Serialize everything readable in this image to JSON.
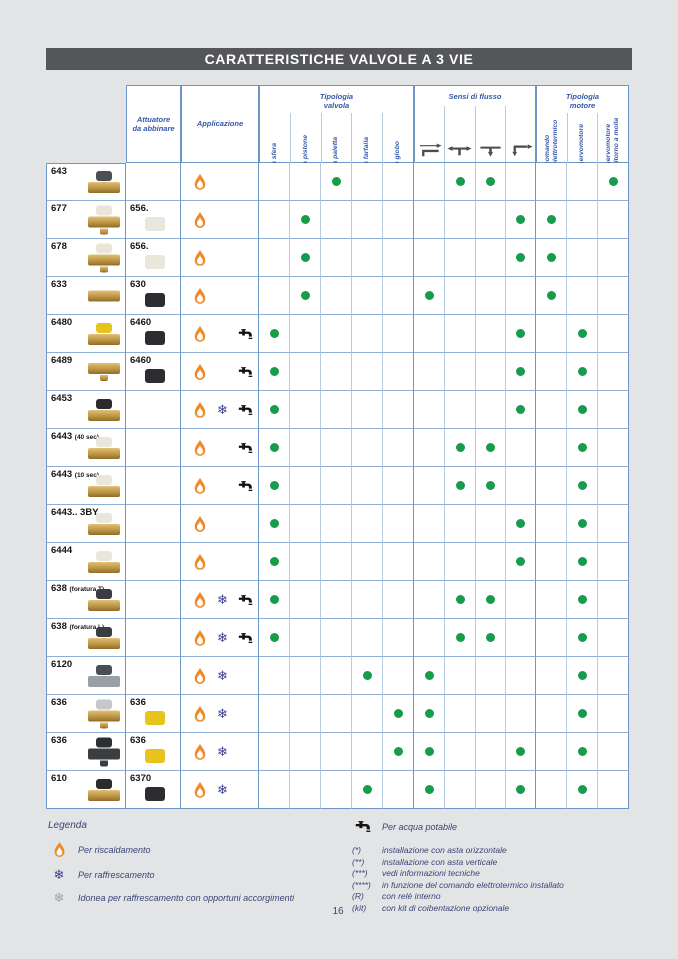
{
  "page": {
    "title": "CARATTERISTICHE VALVOLE A 3 VIE",
    "page_number": "16"
  },
  "colors": {
    "accent_green": "#169c4b",
    "flame_orange": "#ee8a2a",
    "snow_blue": "#3b3f94",
    "snow_gray": "#9fa1a5",
    "header_blue": "#3558a8",
    "brass": "brass"
  },
  "table": {
    "headers": {
      "attuatore": "Attuatore\nda abbinare",
      "applicazione": "Applicazione",
      "tipologia_valvola": "Tipologia\nvalvola",
      "valve_types": [
        "a sfera",
        "a pistone",
        "a paletta",
        "a farfalla",
        "a globo"
      ],
      "sensi_di_flusso": "Sensi di flusso",
      "flow_icons": [
        "flow-elbow-right-icon",
        "flow-tee-sides-icon",
        "flow-tee-down-icon",
        "flow-elbow-down-icon"
      ],
      "tipologia_motore": "Tipologia\nmotore",
      "motor_types": [
        "comando elettrotermico",
        "servomotore",
        "servomotore ritorno a molla"
      ]
    },
    "rows": [
      {
        "code": "643",
        "suffix": "",
        "actuator_code": "",
        "apps": [
          "heating"
        ],
        "valve": [
          0,
          0,
          1,
          0,
          0
        ],
        "flow": [
          0,
          1,
          1,
          0
        ],
        "motor": [
          0,
          0,
          1
        ],
        "product": {
          "top": "#4b4e54",
          "body": "brass",
          "bottom": false
        },
        "actuator": null
      },
      {
        "code": "677",
        "suffix": "",
        "actuator_code": "656.",
        "apps": [
          "heating"
        ],
        "valve": [
          0,
          1,
          0,
          0,
          0
        ],
        "flow": [
          0,
          0,
          0,
          1
        ],
        "motor": [
          1,
          0,
          0
        ],
        "product": {
          "top": "#e9e7dc",
          "body": "brass",
          "bottom": true
        },
        "actuator": "#e9e7dc"
      },
      {
        "code": "678",
        "suffix": "",
        "actuator_code": "656.",
        "apps": [
          "heating"
        ],
        "valve": [
          0,
          1,
          0,
          0,
          0
        ],
        "flow": [
          0,
          0,
          0,
          1
        ],
        "motor": [
          1,
          0,
          0
        ],
        "product": {
          "top": "#e9e7dc",
          "body": "brass",
          "bottom": true
        },
        "actuator": "#e9e7dc"
      },
      {
        "code": "633",
        "suffix": "",
        "actuator_code": "630",
        "apps": [
          "heating"
        ],
        "valve": [
          0,
          1,
          0,
          0,
          0
        ],
        "flow": [
          1,
          0,
          0,
          0
        ],
        "motor": [
          1,
          0,
          0
        ],
        "product": {
          "top": null,
          "body": "brass",
          "bottom": false
        },
        "actuator": "#2b2d30"
      },
      {
        "code": "6480",
        "suffix": "",
        "actuator_code": "6460",
        "apps": [
          "heating",
          "potable"
        ],
        "valve": [
          1,
          0,
          0,
          0,
          0
        ],
        "flow": [
          0,
          0,
          0,
          1
        ],
        "motor": [
          0,
          1,
          0
        ],
        "product": {
          "top": "#e6c31d",
          "body": "brass",
          "bottom": false
        },
        "actuator": "#2b2d30"
      },
      {
        "code": "6489",
        "suffix": "",
        "actuator_code": "6460",
        "apps": [
          "heating",
          "potable"
        ],
        "valve": [
          1,
          0,
          0,
          0,
          0
        ],
        "flow": [
          0,
          0,
          0,
          1
        ],
        "motor": [
          0,
          1,
          0
        ],
        "product": {
          "top": null,
          "body": "brass",
          "bottom": true
        },
        "actuator": "#2b2d30"
      },
      {
        "code": "6453",
        "suffix": "",
        "actuator_code": "",
        "apps": [
          "heating",
          "cooling",
          "potable"
        ],
        "valve": [
          1,
          0,
          0,
          0,
          0
        ],
        "flow": [
          0,
          0,
          0,
          1
        ],
        "motor": [
          0,
          1,
          0
        ],
        "product": {
          "top": "#2b2b2e",
          "body": "brass",
          "bottom": false
        },
        "actuator": null
      },
      {
        "code": "6443",
        "suffix": "(40 sec)",
        "actuator_code": "",
        "apps": [
          "heating",
          "potable"
        ],
        "valve": [
          1,
          0,
          0,
          0,
          0
        ],
        "flow": [
          0,
          1,
          1,
          0
        ],
        "motor": [
          0,
          1,
          0
        ],
        "product": {
          "top": "#e9e7dc",
          "body": "brass",
          "bottom": false
        },
        "actuator": null
      },
      {
        "code": "6443",
        "suffix": "(10 sec)",
        "actuator_code": "",
        "apps": [
          "heating",
          "potable"
        ],
        "valve": [
          1,
          0,
          0,
          0,
          0
        ],
        "flow": [
          0,
          1,
          1,
          0
        ],
        "motor": [
          0,
          1,
          0
        ],
        "product": {
          "top": "#e9e7dc",
          "body": "brass",
          "bottom": false
        },
        "actuator": null
      },
      {
        "code": "6443.. 3BY",
        "suffix": "",
        "actuator_code": "",
        "apps": [
          "heating"
        ],
        "valve": [
          1,
          0,
          0,
          0,
          0
        ],
        "flow": [
          0,
          0,
          0,
          1
        ],
        "motor": [
          0,
          1,
          0
        ],
        "product": {
          "top": "#e9e7dc",
          "body": "brass",
          "bottom": false
        },
        "actuator": null
      },
      {
        "code": "6444",
        "suffix": "",
        "actuator_code": "",
        "apps": [
          "heating"
        ],
        "valve": [
          1,
          0,
          0,
          0,
          0
        ],
        "flow": [
          0,
          0,
          0,
          1
        ],
        "motor": [
          0,
          1,
          0
        ],
        "product": {
          "top": "#e9e7dc",
          "body": "brass",
          "bottom": false
        },
        "actuator": null
      },
      {
        "code": "638",
        "suffix": "(foratura T)",
        "actuator_code": "",
        "apps": [
          "heating",
          "cooling",
          "potable"
        ],
        "valve": [
          1,
          0,
          0,
          0,
          0
        ],
        "flow": [
          0,
          1,
          1,
          0
        ],
        "motor": [
          0,
          1,
          0
        ],
        "product": {
          "top": "#3a3c40",
          "body": "brass",
          "bottom": false
        },
        "actuator": null
      },
      {
        "code": "638",
        "suffix": "(foratura L)",
        "actuator_code": "",
        "apps": [
          "heating",
          "cooling",
          "potable"
        ],
        "valve": [
          1,
          0,
          0,
          0,
          0
        ],
        "flow": [
          0,
          1,
          1,
          0
        ],
        "motor": [
          0,
          1,
          0
        ],
        "product": {
          "top": "#3a3c40",
          "body": "brass",
          "bottom": false
        },
        "actuator": null
      },
      {
        "code": "6120",
        "suffix": "",
        "actuator_code": "",
        "apps": [
          "heating",
          "cooling"
        ],
        "valve": [
          0,
          0,
          0,
          1,
          0
        ],
        "flow": [
          1,
          0,
          0,
          0
        ],
        "motor": [
          0,
          1,
          0
        ],
        "product": {
          "top": "#4b4e54",
          "body": "#9aa0a6",
          "bottom": false
        },
        "actuator": null
      },
      {
        "code": "636",
        "suffix": "",
        "actuator_code": "636",
        "apps": [
          "heating",
          "cooling"
        ],
        "valve": [
          0,
          0,
          0,
          0,
          1
        ],
        "flow": [
          1,
          0,
          0,
          0
        ],
        "motor": [
          0,
          1,
          0
        ],
        "product": {
          "top": "#c6c8cc",
          "body": "brass",
          "bottom": true
        },
        "actuator": "#e6c31d"
      },
      {
        "code": "636",
        "suffix": "",
        "actuator_code": "636",
        "apps": [
          "heating",
          "cooling"
        ],
        "valve": [
          0,
          0,
          0,
          0,
          1
        ],
        "flow": [
          1,
          0,
          0,
          1
        ],
        "motor": [
          0,
          1,
          0
        ],
        "product": {
          "top": "#2c2e31",
          "body": "#3a3d41",
          "bottom": true
        },
        "actuator": "#e6c31d"
      },
      {
        "code": "610",
        "suffix": "",
        "actuator_code": "6370",
        "apps": [
          "heating",
          "cooling"
        ],
        "valve": [
          0,
          0,
          0,
          1,
          0
        ],
        "flow": [
          1,
          0,
          0,
          1
        ],
        "motor": [
          0,
          1,
          0
        ],
        "product": {
          "top": "#2b2b2e",
          "body": "brass",
          "bottom": false
        },
        "actuator": "#2b2d30"
      }
    ]
  },
  "legend": {
    "title": "Legenda",
    "left_items": [
      {
        "icon": "flame-icon",
        "text": "Per riscaldamento"
      },
      {
        "icon": "snowflake-icon",
        "text": "Per raffrescamento"
      },
      {
        "icon": "snowflake-gray-icon",
        "text": "Idonea per raffrescamento con opportuni accorgimenti"
      }
    ],
    "potable_item": {
      "icon": "tap-icon",
      "text": "Per acqua potabile"
    },
    "notes": [
      {
        "sym": "(*)",
        "text": "installazione con asta orizzontale"
      },
      {
        "sym": "(**)",
        "text": "installazione con asta verticale"
      },
      {
        "sym": "(***)",
        "text": "vedi informazioni tecniche"
      },
      {
        "sym": "(****)",
        "text": "in funzione del comando elettrotermico installato"
      },
      {
        "sym": "(R)",
        "text": "con relè interno"
      },
      {
        "sym": "(kit)",
        "text": "con kit di coibentazione opzionale"
      }
    ]
  }
}
